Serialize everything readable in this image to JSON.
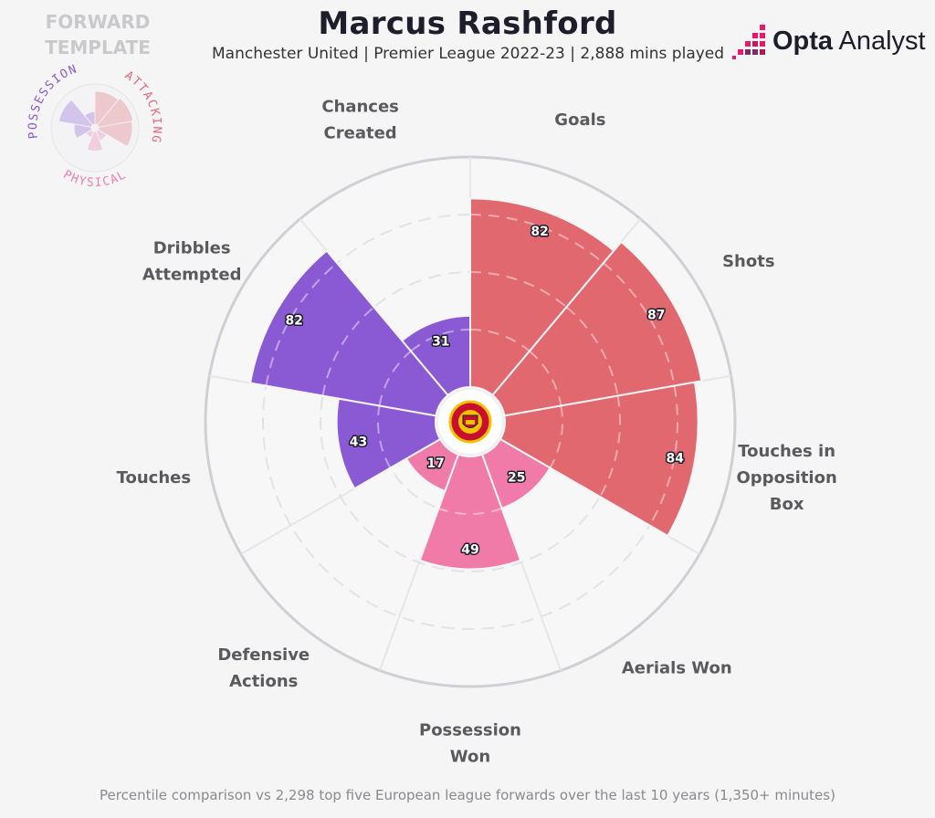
{
  "header": {
    "title": "Marcus Rashford",
    "subtitle": "Manchester United | Premier League 2022-23 | 2,888 mins played",
    "template_line1": "FORWARD",
    "template_line2": "TEMPLATE",
    "brand_bold": "Opta",
    "brand_light": " Analyst"
  },
  "mini_legend": {
    "possession": "POSSESSION",
    "attacking": "ATTACKING",
    "physical": "PHYSICAL"
  },
  "footer": {
    "note": "Percentile comparison vs 2,298 top five European league forwards over the last 10 years (1,350+ minutes)"
  },
  "colors": {
    "attacking": "#e0686e",
    "physical": "#f07aa8",
    "possession": "#8a5ad4",
    "ring": "#d0d0d4",
    "background": "#f5f5f6"
  },
  "icons": {
    "center_badge": "club-crest-icon",
    "brand_logo": "bar-chart-icon"
  },
  "chart_data": {
    "type": "polar-bar",
    "max": 100,
    "rings": [
      25,
      50,
      75
    ],
    "categories": [
      {
        "label": [
          "Goals"
        ],
        "value": 82,
        "group": "attacking"
      },
      {
        "label": [
          "Shots"
        ],
        "value": 87,
        "group": "attacking"
      },
      {
        "label": [
          "Touches in",
          "Opposition",
          "Box"
        ],
        "value": 84,
        "group": "attacking"
      },
      {
        "label": [
          "Aerials Won"
        ],
        "value": 25,
        "group": "physical"
      },
      {
        "label": [
          "Possession",
          "Won"
        ],
        "value": 49,
        "group": "physical"
      },
      {
        "label": [
          "Defensive",
          "Actions"
        ],
        "value": 17,
        "group": "physical"
      },
      {
        "label": [
          "Touches"
        ],
        "value": 43,
        "group": "possession"
      },
      {
        "label": [
          "Dribbles",
          "Attempted"
        ],
        "value": 82,
        "group": "possession"
      },
      {
        "label": [
          "Chances",
          "Created"
        ],
        "value": 31,
        "group": "possession"
      }
    ]
  }
}
